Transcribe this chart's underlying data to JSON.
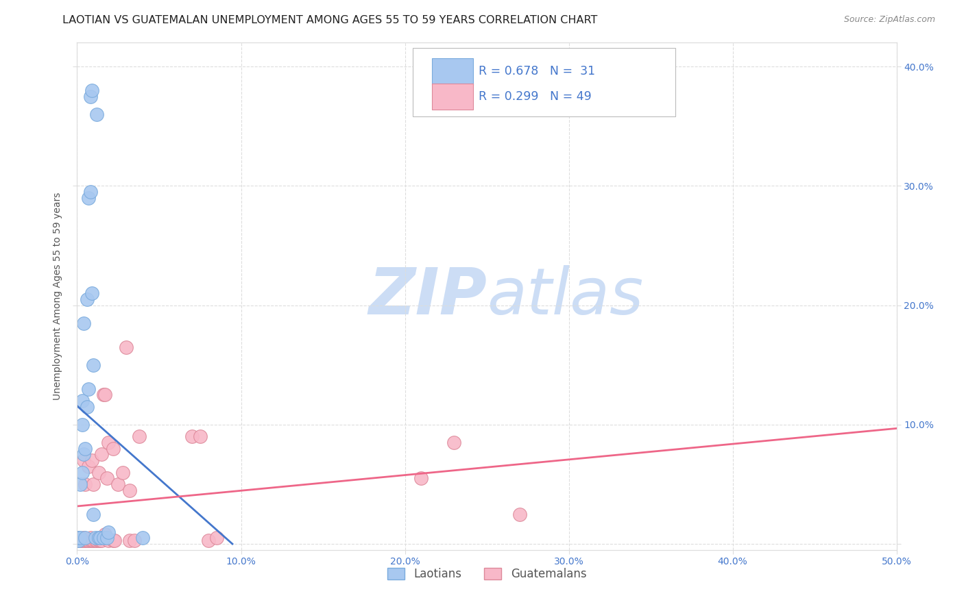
{
  "title": "LAOTIAN VS GUATEMALAN UNEMPLOYMENT AMONG AGES 55 TO 59 YEARS CORRELATION CHART",
  "source": "Source: ZipAtlas.com",
  "ylabel": "Unemployment Among Ages 55 to 59 years",
  "xlim": [
    0.0,
    0.5
  ],
  "ylim": [
    -0.005,
    0.42
  ],
  "xticks": [
    0.0,
    0.1,
    0.2,
    0.3,
    0.4,
    0.5
  ],
  "yticks": [
    0.0,
    0.1,
    0.2,
    0.3,
    0.4
  ],
  "xticklabels": [
    "0.0%",
    "10.0%",
    "20.0%",
    "30.0%",
    "40.0%",
    "50.0%"
  ],
  "yticklabels_right": [
    "",
    "10.0%",
    "20.0%",
    "30.0%",
    "40.0%"
  ],
  "background_color": "#ffffff",
  "grid_color": "#dddddd",
  "laotian_color": "#a8c8f0",
  "laotian_edge_color": "#7aabdd",
  "guatemalan_color": "#f8b8c8",
  "guatemalan_edge_color": "#dd8899",
  "laotian_line_color": "#4477cc",
  "guatemalan_line_color": "#ee6688",
  "laotian_x": [
    0.0,
    0.0,
    0.001,
    0.001,
    0.002,
    0.002,
    0.003,
    0.003,
    0.003,
    0.004,
    0.004,
    0.005,
    0.005,
    0.006,
    0.006,
    0.007,
    0.007,
    0.008,
    0.008,
    0.009,
    0.009,
    0.01,
    0.01,
    0.011,
    0.012,
    0.013,
    0.014,
    0.016,
    0.018,
    0.019,
    0.04
  ],
  "laotian_y": [
    0.003,
    0.005,
    0.003,
    0.005,
    0.005,
    0.05,
    0.06,
    0.1,
    0.12,
    0.075,
    0.185,
    0.005,
    0.08,
    0.115,
    0.205,
    0.13,
    0.29,
    0.295,
    0.375,
    0.38,
    0.21,
    0.025,
    0.15,
    0.005,
    0.36,
    0.005,
    0.005,
    0.005,
    0.005,
    0.01,
    0.005
  ],
  "guatemalan_x": [
    0.0,
    0.0,
    0.001,
    0.002,
    0.003,
    0.004,
    0.004,
    0.004,
    0.005,
    0.005,
    0.006,
    0.007,
    0.007,
    0.008,
    0.008,
    0.009,
    0.009,
    0.01,
    0.01,
    0.011,
    0.012,
    0.013,
    0.013,
    0.014,
    0.015,
    0.015,
    0.016,
    0.017,
    0.017,
    0.018,
    0.019,
    0.019,
    0.022,
    0.022,
    0.023,
    0.025,
    0.028,
    0.03,
    0.032,
    0.032,
    0.035,
    0.038,
    0.07,
    0.075,
    0.08,
    0.085,
    0.21,
    0.23,
    0.27
  ],
  "guatemalan_y": [
    0.003,
    0.005,
    0.003,
    0.003,
    0.003,
    0.003,
    0.005,
    0.07,
    0.003,
    0.05,
    0.003,
    0.003,
    0.065,
    0.003,
    0.005,
    0.003,
    0.07,
    0.003,
    0.05,
    0.003,
    0.003,
    0.003,
    0.06,
    0.003,
    0.003,
    0.075,
    0.125,
    0.125,
    0.008,
    0.055,
    0.003,
    0.085,
    0.003,
    0.08,
    0.003,
    0.05,
    0.06,
    0.165,
    0.003,
    0.045,
    0.003,
    0.09,
    0.09,
    0.09,
    0.003,
    0.005,
    0.055,
    0.085,
    0.025
  ],
  "watermark_zip": "ZIP",
  "watermark_atlas": "atlas",
  "watermark_color": "#ccddf5",
  "title_fontsize": 11.5,
  "axis_label_fontsize": 10,
  "tick_fontsize": 10,
  "tick_color": "#4477cc",
  "legend_R1": "R = 0.678",
  "legend_N1": "N =  31",
  "legend_R2": "R = 0.299",
  "legend_N2": "N = 49"
}
